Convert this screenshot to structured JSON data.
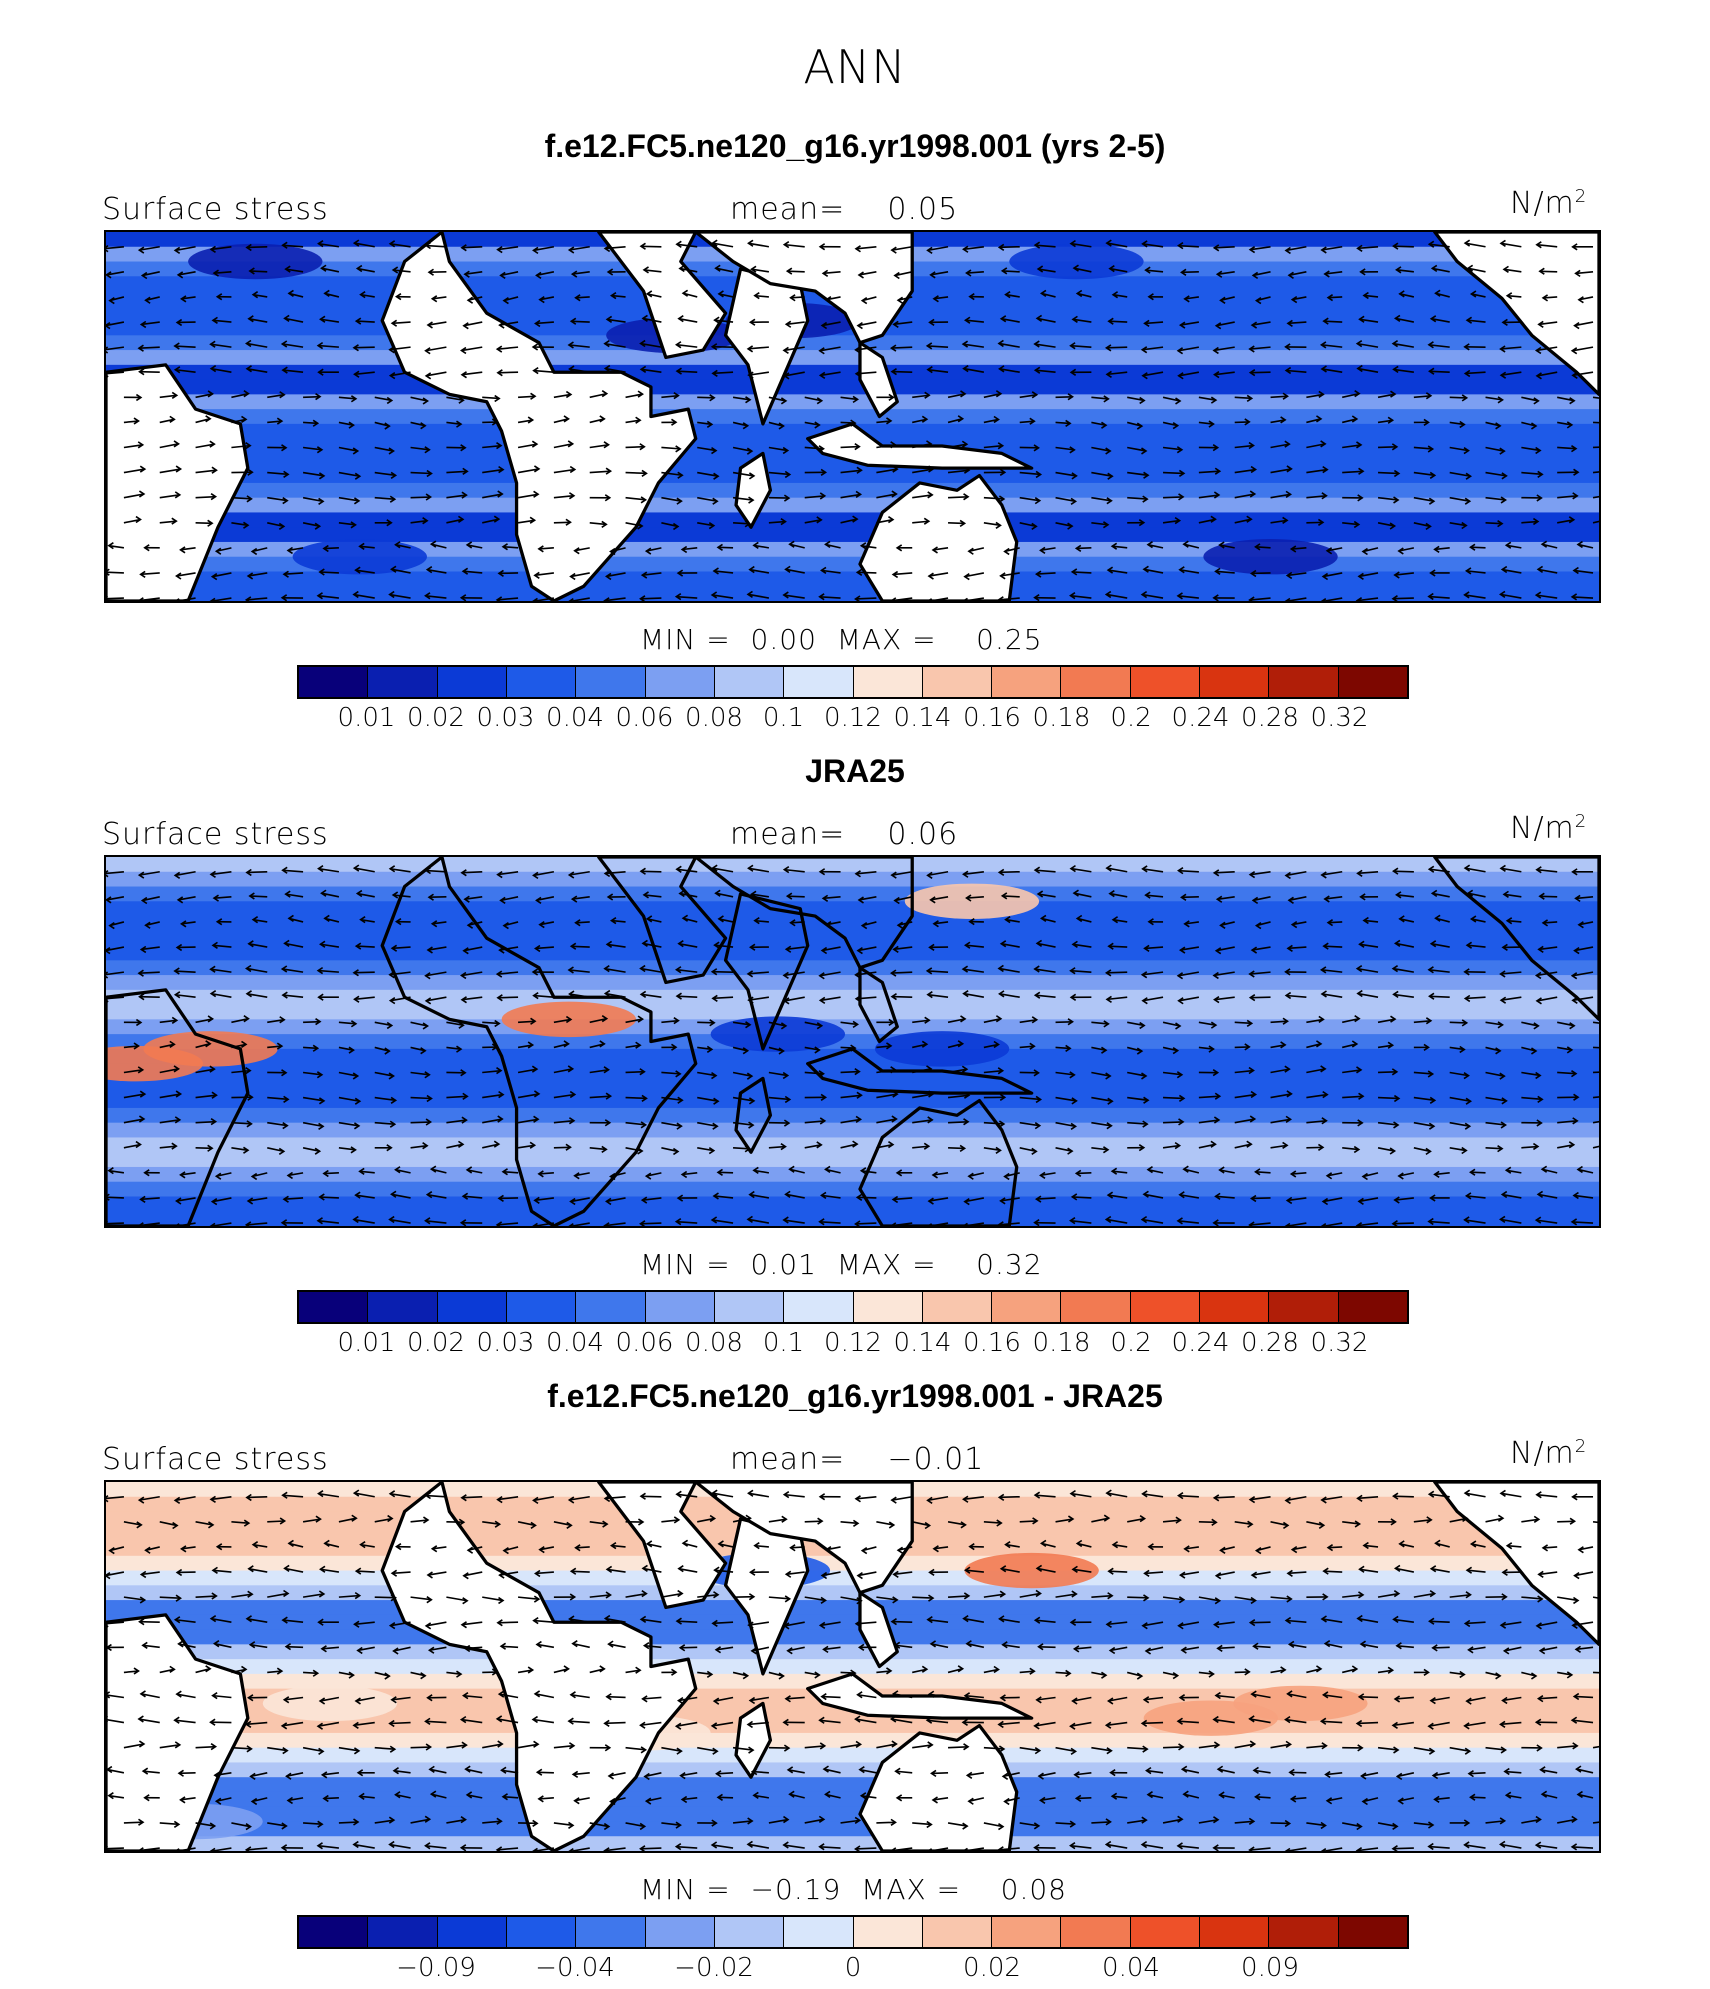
{
  "title": "ANN",
  "colors": {
    "abs_scale": [
      "#08007a",
      "#0a1fb0",
      "#0b3ad6",
      "#1e5ae8",
      "#3f77ec",
      "#7c9ff2",
      "#b0c6f6",
      "#d8e6fb",
      "#fbe6d8",
      "#f9c6ad",
      "#f6a27e",
      "#f27a52",
      "#ee5129",
      "#d93410",
      "#b01e08",
      "#7d0700"
    ],
    "diff_scale": [
      "#08007a",
      "#0a1fb0",
      "#0b3ad6",
      "#1e5ae8",
      "#3f77ec",
      "#7c9ff2",
      "#b0c6f6",
      "#d8e6fb",
      "#fbe6d8",
      "#f9c6ad",
      "#f6a27e",
      "#f27a52",
      "#ee5129",
      "#d93410",
      "#b01e08",
      "#7d0700"
    ]
  },
  "chart_data": [
    {
      "type": "heatmap",
      "title": "f.e12.FC5.ne120_g16.yr1998.001 (yrs 2-5)",
      "variable": "Surface stress",
      "mean_label": "mean=",
      "mean": "0.05",
      "units": "N/m",
      "units_sup": "2",
      "min_label": "MIN =",
      "min": "0.00",
      "max_label": "MAX =",
      "max": "0.25",
      "colorbar_levels": [
        "0.01",
        "0.02",
        "0.03",
        "0.04",
        "0.06",
        "0.08",
        "0.1",
        "0.12",
        "0.14",
        "0.16",
        "0.18",
        "0.2",
        "0.24",
        "0.28",
        "0.32"
      ],
      "style": "model"
    },
    {
      "type": "heatmap",
      "title": "JRA25",
      "variable": "Surface stress",
      "mean_label": "mean=",
      "mean": "0.06",
      "units": "N/m",
      "units_sup": "2",
      "min_label": "MIN =",
      "min": "0.01",
      "max_label": "MAX =",
      "max": "0.32",
      "colorbar_levels": [
        "0.01",
        "0.02",
        "0.03",
        "0.04",
        "0.06",
        "0.08",
        "0.1",
        "0.12",
        "0.14",
        "0.16",
        "0.18",
        "0.2",
        "0.24",
        "0.28",
        "0.32"
      ],
      "style": "obs"
    },
    {
      "type": "heatmap",
      "title": "f.e12.FC5.ne120_g16.yr1998.001 - JRA25",
      "variable": "Surface stress",
      "mean_label": "mean=",
      "mean": "−0.01",
      "units": "N/m",
      "units_sup": "2",
      "min_label": "MIN =",
      "min": "−0.19",
      "max_label": "MAX =",
      "max": "0.08",
      "colorbar_levels": [
        "−0.09",
        "−0.04",
        "−0.02",
        "0",
        "0.02",
        "0.04",
        "0.09"
      ],
      "style": "diff"
    }
  ]
}
